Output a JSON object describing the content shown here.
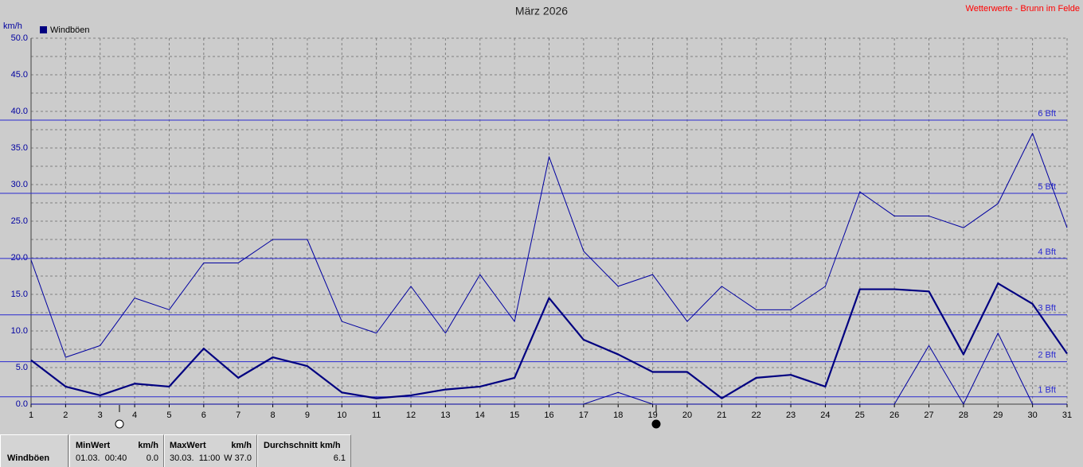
{
  "chart_data": {
    "type": "line",
    "title": "März 2026",
    "source": "Wetterwerte - Brunn im Felde",
    "y_unit": "km/h",
    "legend": "Windböen",
    "legend_color": "#000080",
    "x": [
      1,
      2,
      3,
      4,
      5,
      6,
      7,
      8,
      9,
      10,
      11,
      12,
      13,
      14,
      15,
      16,
      17,
      18,
      19,
      20,
      21,
      22,
      23,
      24,
      25,
      26,
      27,
      28,
      29,
      30,
      31
    ],
    "xlim": [
      1,
      31
    ],
    "xticks": [
      1,
      2,
      3,
      4,
      5,
      6,
      7,
      8,
      9,
      10,
      11,
      12,
      13,
      14,
      15,
      16,
      17,
      18,
      19,
      20,
      21,
      22,
      23,
      24,
      25,
      26,
      27,
      28,
      29,
      30,
      31
    ],
    "ylim": [
      0,
      50
    ],
    "yticks": [
      {
        "value": 0,
        "label": "0.0"
      },
      {
        "value": 5,
        "label": "5.0"
      },
      {
        "value": 10,
        "label": "10.0"
      },
      {
        "value": 15,
        "label": "15.0"
      },
      {
        "value": 20,
        "label": "20.0"
      },
      {
        "value": 25,
        "label": "25.0"
      },
      {
        "value": 30,
        "label": "30.0"
      },
      {
        "value": 35,
        "label": "35.0"
      },
      {
        "value": 40,
        "label": "40.0"
      },
      {
        "value": 45,
        "label": "45.0"
      },
      {
        "value": 50,
        "label": "50.0"
      }
    ],
    "minor_yticks": [
      2.5,
      7.5,
      12.5,
      17.5,
      22.5,
      27.5,
      32.5,
      37.5,
      42.5,
      47.5
    ],
    "grid": true,
    "bft_color": "#2a2ad0",
    "bft_lines": [
      {
        "value": 1,
        "label": "1 Bft"
      },
      {
        "value": 5.8,
        "label": "2 Bft"
      },
      {
        "value": 12.2,
        "label": "3 Bft"
      },
      {
        "value": 19.9,
        "label": "4 Bft"
      },
      {
        "value": 28.8,
        "label": "5 Bft"
      },
      {
        "value": 38.8,
        "label": "6 Bft"
      }
    ],
    "series": [
      {
        "color": "#0000a0",
        "width": 1,
        "values": [
          19.7,
          6.4,
          8.0,
          14.5,
          12.9,
          19.3,
          19.3,
          22.5,
          22.5,
          11.3,
          9.7,
          16.1,
          9.7,
          17.7,
          11.3,
          33.8,
          20.9,
          16.1,
          17.7,
          11.3,
          16.1,
          12.9,
          12.9,
          16.1,
          29.0,
          25.7,
          25.7,
          24.1,
          27.4,
          37.0,
          24.1
        ]
      },
      {
        "color": "#000080",
        "width": 2.2,
        "values": [
          6.0,
          2.4,
          1.2,
          2.8,
          2.4,
          7.6,
          3.6,
          6.4,
          5.2,
          1.6,
          0.8,
          1.2,
          2.0,
          2.4,
          3.6,
          14.5,
          8.8,
          6.8,
          4.4,
          4.4,
          0.8,
          3.6,
          4.0,
          2.4,
          15.7,
          15.7,
          15.4,
          6.8,
          16.5,
          13.7,
          6.9
        ]
      },
      {
        "color": "#0000a0",
        "width": 1,
        "values": [
          0,
          0,
          0,
          0,
          0,
          0,
          0,
          0,
          0,
          0,
          0,
          0,
          0,
          0,
          0,
          0,
          0,
          1.6,
          0,
          0,
          0,
          0,
          0,
          0,
          0,
          0,
          8.0,
          0,
          9.7,
          0,
          0
        ]
      }
    ]
  },
  "summary": {
    "name": "Windböen",
    "min": {
      "title": "MinWert",
      "unit": "km/h",
      "time": "01.03.  00:40",
      "value": "0.0"
    },
    "max": {
      "title": "MaxWert",
      "unit": "km/h",
      "time": "30.03.  11:00",
      "value": "W 37.0"
    },
    "avg": {
      "title": "Durchschnitt km/h",
      "value": "6.1"
    }
  }
}
